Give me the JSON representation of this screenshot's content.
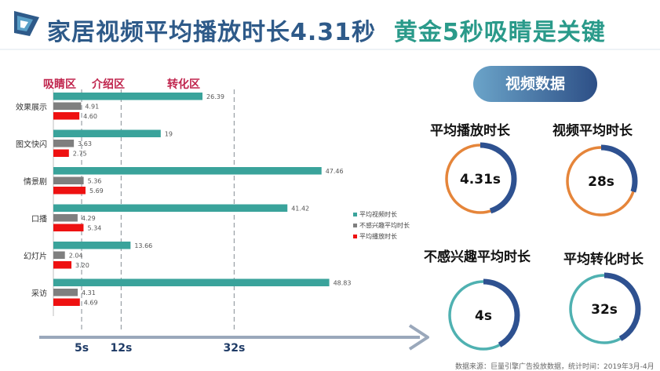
{
  "title": {
    "part1": "家居视频平均播放时长4.31秒",
    "part2": "黄金5秒吸睛是关键"
  },
  "zones": [
    "吸睛区",
    "介绍区",
    "转化区"
  ],
  "chart_data": {
    "type": "bar",
    "orientation": "horizontal",
    "categories": [
      "效果展示",
      "图文快闪",
      "情景剧",
      "口播",
      "幻灯片",
      "采访"
    ],
    "series": [
      {
        "name": "平均视频时长",
        "color": "#3aa39b",
        "values": [
          26.39,
          19,
          47.46,
          41.42,
          13.66,
          48.83
        ]
      },
      {
        "name": "不感兴趣平均时长",
        "color": "#7f7f7f",
        "values": [
          4.91,
          3.63,
          5.36,
          4.29,
          2.04,
          4.31
        ]
      },
      {
        "name": "平均播放时长",
        "color": "#ee1111",
        "values": [
          4.6,
          2.75,
          5.69,
          5.34,
          3.2,
          4.69
        ]
      }
    ],
    "value_labels": [
      [
        "26.39",
        "19",
        "47.46",
        "41.42",
        "13.66",
        "48.83"
      ],
      [
        "4.91",
        "3.63",
        "5.36",
        "4.29",
        "2.04",
        "4.31"
      ],
      [
        "4.60",
        "2.75",
        "5.69",
        "5.34",
        "3.20",
        "4.69"
      ]
    ],
    "reference_lines": [
      5,
      12,
      32
    ],
    "reference_labels": [
      "5s",
      "12s",
      "32s"
    ],
    "xlim": [
      0,
      50
    ],
    "legend_position": "right"
  },
  "panel": {
    "heading": "视频数据",
    "stats": [
      {
        "title": "平均播放时长",
        "value": "4.31s",
        "fraction": 0.45,
        "ring_color": "#e5853a"
      },
      {
        "title": "视频平均时长",
        "value": "28s",
        "fraction": 0.3,
        "ring_color": "#e5853a"
      },
      {
        "title": "不感兴趣平均时长",
        "value": "4s",
        "fraction": 0.42,
        "ring_color": "#4fb1b1"
      },
      {
        "title": "平均转化时长",
        "value": "32s",
        "fraction": 0.42,
        "ring_color": "#4fb1b1"
      }
    ],
    "ring_accent": "#2e5190"
  },
  "source": "数据来源：巨量引擎广告投放数据，统计时间：2019年3月-4月"
}
